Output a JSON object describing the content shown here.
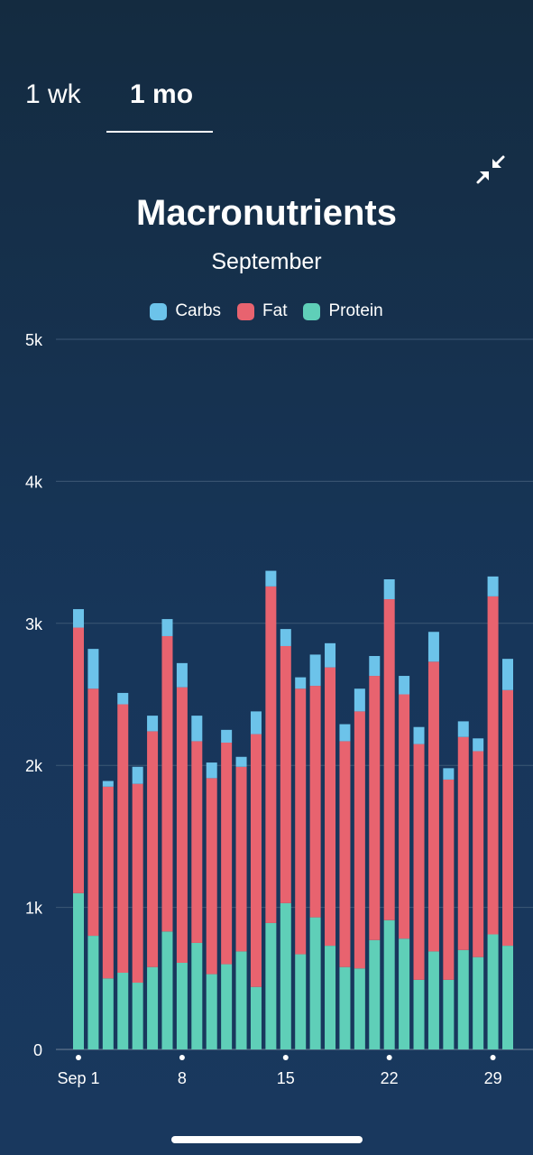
{
  "tabs": {
    "week": "1 wk",
    "month": "1 mo"
  },
  "collapse_icon": "collapse-arrows-icon",
  "chart_data": {
    "type": "bar",
    "stacked": true,
    "title": "Macronutrients",
    "subtitle": "September",
    "y_ticks": [
      "0",
      "1k",
      "2k",
      "3k",
      "4k",
      "5k"
    ],
    "ylim": [
      0,
      5000
    ],
    "x_tick_labels": [
      {
        "day": 1,
        "label": "Sep 1"
      },
      {
        "day": 8,
        "label": "8"
      },
      {
        "day": 15,
        "label": "15"
      },
      {
        "day": 22,
        "label": "22"
      },
      {
        "day": 29,
        "label": "29"
      }
    ],
    "grid": true,
    "legend_placement": "top-center",
    "colors": {
      "Carbs": "#6cc3ea",
      "Fat": "#e8636f",
      "Protein": "#5fcfb8"
    },
    "categories": [
      1,
      2,
      3,
      4,
      5,
      6,
      7,
      8,
      9,
      10,
      11,
      12,
      13,
      14,
      15,
      16,
      17,
      18,
      19,
      20,
      21,
      22,
      23,
      24,
      25,
      26,
      27,
      28,
      29,
      30
    ],
    "series": [
      {
        "name": "Protein",
        "values": [
          1100,
          800,
          500,
          540,
          470,
          580,
          830,
          610,
          750,
          530,
          600,
          690,
          440,
          890,
          1030,
          670,
          930,
          730,
          580,
          570,
          770,
          910,
          780,
          490,
          690,
          490,
          700,
          650,
          810,
          730
        ]
      },
      {
        "name": "Fat",
        "values": [
          1870,
          1740,
          1350,
          1890,
          1400,
          1660,
          2080,
          1940,
          1420,
          1380,
          1560,
          1300,
          1780,
          2370,
          1810,
          1870,
          1630,
          1960,
          1590,
          1810,
          1860,
          2260,
          1720,
          1660,
          2040,
          1410,
          1500,
          1450,
          2380,
          1800
        ]
      },
      {
        "name": "Carbs",
        "values": [
          130,
          280,
          40,
          80,
          120,
          110,
          120,
          170,
          180,
          110,
          90,
          70,
          160,
          110,
          120,
          80,
          220,
          170,
          120,
          160,
          140,
          140,
          130,
          120,
          210,
          80,
          110,
          90,
          140,
          220
        ]
      }
    ]
  }
}
